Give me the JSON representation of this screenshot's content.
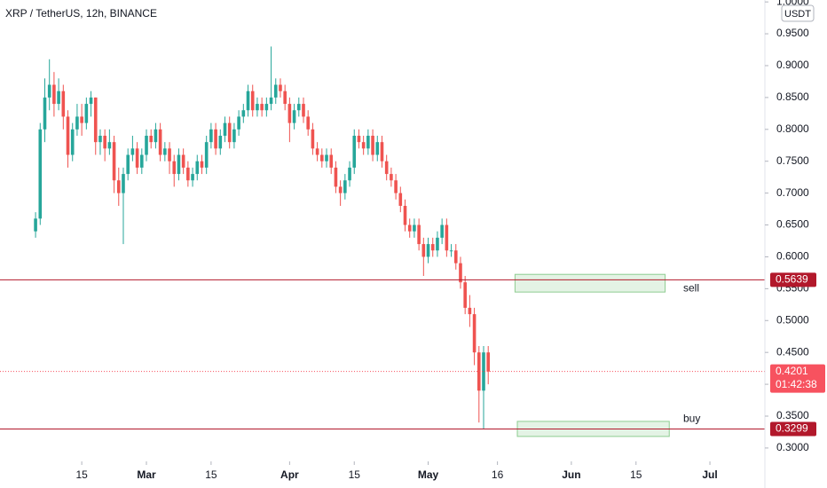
{
  "chart_data": {
    "type": "candlestick",
    "title": "XRP / TetherUS, 12h, BINANCE",
    "currency": "USDT",
    "colors": {
      "up": "#26a69a",
      "down": "#ef5350"
    },
    "x": [
      4,
      5,
      6,
      7,
      8,
      9,
      10,
      11,
      12,
      13,
      14,
      15,
      16,
      17,
      18,
      19,
      20,
      21,
      22,
      23,
      24,
      25,
      26,
      27,
      28,
      29,
      30,
      31,
      32,
      33,
      34,
      35,
      36,
      37,
      38,
      39,
      40,
      41,
      42,
      43,
      44,
      45,
      46,
      47,
      48,
      49,
      50,
      51,
      52,
      53,
      54,
      55,
      56,
      57,
      58,
      59,
      60,
      61,
      62,
      63,
      64,
      65,
      66,
      67,
      68,
      69,
      70,
      71,
      72,
      73,
      74,
      75,
      76,
      77,
      78,
      79,
      80,
      81,
      82,
      83,
      84,
      85,
      86,
      87,
      88,
      89,
      90,
      91,
      92,
      93,
      94,
      95,
      96,
      97,
      98,
      99,
      100,
      101,
      102
    ],
    "candles": [
      [
        0.64,
        0.67,
        0.63,
        0.66
      ],
      [
        0.66,
        0.81,
        0.65,
        0.8
      ],
      [
        0.8,
        0.88,
        0.78,
        0.85
      ],
      [
        0.85,
        0.91,
        0.83,
        0.87
      ],
      [
        0.87,
        0.89,
        0.82,
        0.84
      ],
      [
        0.84,
        0.88,
        0.83,
        0.86
      ],
      [
        0.86,
        0.87,
        0.8,
        0.82
      ],
      [
        0.82,
        0.83,
        0.74,
        0.76
      ],
      [
        0.76,
        0.81,
        0.75,
        0.8
      ],
      [
        0.8,
        0.84,
        0.79,
        0.82
      ],
      [
        0.82,
        0.84,
        0.79,
        0.81
      ],
      [
        0.81,
        0.85,
        0.8,
        0.84
      ],
      [
        0.84,
        0.86,
        0.82,
        0.85
      ],
      [
        0.85,
        0.85,
        0.76,
        0.78
      ],
      [
        0.78,
        0.8,
        0.76,
        0.79
      ],
      [
        0.79,
        0.8,
        0.75,
        0.77
      ],
      [
        0.77,
        0.8,
        0.76,
        0.78
      ],
      [
        0.78,
        0.79,
        0.7,
        0.72
      ],
      [
        0.72,
        0.74,
        0.68,
        0.7
      ],
      [
        0.7,
        0.74,
        0.62,
        0.73
      ],
      [
        0.73,
        0.77,
        0.72,
        0.76
      ],
      [
        0.76,
        0.79,
        0.75,
        0.77
      ],
      [
        0.77,
        0.78,
        0.73,
        0.74
      ],
      [
        0.74,
        0.77,
        0.73,
        0.76
      ],
      [
        0.76,
        0.8,
        0.75,
        0.79
      ],
      [
        0.79,
        0.8,
        0.77,
        0.78
      ],
      [
        0.78,
        0.81,
        0.77,
        0.8
      ],
      [
        0.8,
        0.81,
        0.75,
        0.76
      ],
      [
        0.76,
        0.78,
        0.75,
        0.77
      ],
      [
        0.77,
        0.78,
        0.73,
        0.75
      ],
      [
        0.75,
        0.76,
        0.71,
        0.73
      ],
      [
        0.73,
        0.77,
        0.72,
        0.76
      ],
      [
        0.76,
        0.77,
        0.73,
        0.74
      ],
      [
        0.74,
        0.75,
        0.71,
        0.72
      ],
      [
        0.72,
        0.74,
        0.71,
        0.73
      ],
      [
        0.73,
        0.76,
        0.72,
        0.75
      ],
      [
        0.75,
        0.76,
        0.73,
        0.74
      ],
      [
        0.74,
        0.79,
        0.73,
        0.78
      ],
      [
        0.78,
        0.81,
        0.77,
        0.8
      ],
      [
        0.8,
        0.81,
        0.76,
        0.77
      ],
      [
        0.77,
        0.8,
        0.76,
        0.79
      ],
      [
        0.79,
        0.82,
        0.78,
        0.81
      ],
      [
        0.81,
        0.82,
        0.77,
        0.78
      ],
      [
        0.78,
        0.81,
        0.77,
        0.8
      ],
      [
        0.8,
        0.83,
        0.79,
        0.82
      ],
      [
        0.82,
        0.84,
        0.81,
        0.83
      ],
      [
        0.83,
        0.87,
        0.82,
        0.86
      ],
      [
        0.86,
        0.87,
        0.82,
        0.83
      ],
      [
        0.83,
        0.85,
        0.82,
        0.84
      ],
      [
        0.84,
        0.85,
        0.82,
        0.83
      ],
      [
        0.83,
        0.85,
        0.82,
        0.84
      ],
      [
        0.84,
        0.93,
        0.83,
        0.85
      ],
      [
        0.85,
        0.88,
        0.84,
        0.87
      ],
      [
        0.87,
        0.88,
        0.85,
        0.86
      ],
      [
        0.86,
        0.87,
        0.83,
        0.84
      ],
      [
        0.84,
        0.85,
        0.78,
        0.81
      ],
      [
        0.81,
        0.84,
        0.8,
        0.83
      ],
      [
        0.83,
        0.85,
        0.82,
        0.84
      ],
      [
        0.84,
        0.85,
        0.81,
        0.82
      ],
      [
        0.82,
        0.83,
        0.79,
        0.8
      ],
      [
        0.8,
        0.81,
        0.76,
        0.77
      ],
      [
        0.77,
        0.78,
        0.75,
        0.76
      ],
      [
        0.76,
        0.77,
        0.74,
        0.75
      ],
      [
        0.75,
        0.77,
        0.74,
        0.76
      ],
      [
        0.76,
        0.77,
        0.73,
        0.74
      ],
      [
        0.74,
        0.75,
        0.7,
        0.71
      ],
      [
        0.71,
        0.72,
        0.68,
        0.7
      ],
      [
        0.7,
        0.73,
        0.69,
        0.72
      ],
      [
        0.72,
        0.75,
        0.71,
        0.74
      ],
      [
        0.74,
        0.8,
        0.73,
        0.79
      ],
      [
        0.79,
        0.8,
        0.77,
        0.78
      ],
      [
        0.78,
        0.79,
        0.76,
        0.77
      ],
      [
        0.77,
        0.8,
        0.76,
        0.79
      ],
      [
        0.79,
        0.8,
        0.75,
        0.76
      ],
      [
        0.76,
        0.79,
        0.75,
        0.78
      ],
      [
        0.78,
        0.79,
        0.74,
        0.75
      ],
      [
        0.75,
        0.76,
        0.72,
        0.73
      ],
      [
        0.73,
        0.74,
        0.71,
        0.72
      ],
      [
        0.72,
        0.73,
        0.69,
        0.7
      ],
      [
        0.7,
        0.71,
        0.67,
        0.68
      ],
      [
        0.68,
        0.69,
        0.64,
        0.65
      ],
      [
        0.65,
        0.66,
        0.63,
        0.64
      ],
      [
        0.64,
        0.66,
        0.63,
        0.65
      ],
      [
        0.65,
        0.66,
        0.61,
        0.62
      ],
      [
        0.62,
        0.63,
        0.57,
        0.6
      ],
      [
        0.6,
        0.63,
        0.59,
        0.62
      ],
      [
        0.62,
        0.63,
        0.6,
        0.61
      ],
      [
        0.61,
        0.64,
        0.6,
        0.63
      ],
      [
        0.63,
        0.66,
        0.62,
        0.65
      ],
      [
        0.65,
        0.66,
        0.6,
        0.61
      ],
      [
        0.61,
        0.62,
        0.6,
        0.61
      ],
      [
        0.61,
        0.62,
        0.58,
        0.59
      ],
      [
        0.59,
        0.6,
        0.55,
        0.56
      ],
      [
        0.56,
        0.57,
        0.51,
        0.52
      ],
      [
        0.52,
        0.54,
        0.49,
        0.51
      ],
      [
        0.51,
        0.52,
        0.43,
        0.45
      ],
      [
        0.45,
        0.46,
        0.34,
        0.39
      ],
      [
        0.39,
        0.46,
        0.33,
        0.45
      ],
      [
        0.45,
        0.46,
        0.4,
        0.42
      ]
    ],
    "xlim": [
      -3.7,
      161.9
    ],
    "xticks": [
      {
        "value": 14,
        "label": "15"
      },
      {
        "value": 28,
        "label": "Mar"
      },
      {
        "value": 42,
        "label": "15"
      },
      {
        "value": 59,
        "label": "Apr"
      },
      {
        "value": 73,
        "label": "15"
      },
      {
        "value": 89,
        "label": "May"
      },
      {
        "value": 104,
        "label": "16"
      },
      {
        "value": 120,
        "label": "Jun"
      },
      {
        "value": 134,
        "label": "15"
      },
      {
        "value": 150,
        "label": "Jul"
      }
    ],
    "ylim": [
      0.279,
      1.003
    ],
    "yticks": [
      {
        "value": 0.3,
        "label": "0.3000"
      },
      {
        "value": 0.35,
        "label": "0.3500"
      },
      {
        "value": 0.4,
        "label": "0.4000"
      },
      {
        "value": 0.45,
        "label": "0.4500"
      },
      {
        "value": 0.5,
        "label": "0.5000"
      },
      {
        "value": 0.55,
        "label": "0.5500"
      },
      {
        "value": 0.6,
        "label": "0.6000"
      },
      {
        "value": 0.65,
        "label": "0.6500"
      },
      {
        "value": 0.7,
        "label": "0.7000"
      },
      {
        "value": 0.75,
        "label": "0.7500"
      },
      {
        "value": 0.8,
        "label": "0.8000"
      },
      {
        "value": 0.85,
        "label": "0.8500"
      },
      {
        "value": 0.9,
        "label": "0.9000"
      },
      {
        "value": 0.95,
        "label": "0.9500"
      },
      {
        "value": 1.0,
        "label": "1.0000"
      }
    ],
    "levels": [
      {
        "value": 0.5639,
        "color": "#b2182b",
        "text": "sell"
      },
      {
        "value": 0.3299,
        "color": "#b2182b",
        "text": "buy"
      }
    ],
    "current": {
      "value": 0.4201,
      "countdown": "01:42:38",
      "color": "#f7525f"
    },
    "zones": [
      {
        "x": [
          107.8,
          140.3
        ],
        "y": [
          0.5447,
          0.5725
        ],
        "color": "#4caf50"
      },
      {
        "x": [
          108.3,
          141.2
        ],
        "y": [
          0.3181,
          0.3418
        ],
        "color": "#4caf50"
      }
    ]
  }
}
